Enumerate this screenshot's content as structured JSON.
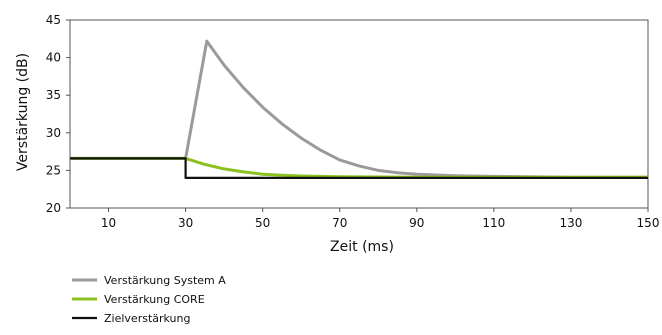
{
  "chart_data": {
    "type": "line",
    "xlabel": "Zeit (ms)",
    "ylabel": "Verstärkung (dB)",
    "xlim": [
      0,
      150
    ],
    "ylim": [
      20,
      45
    ],
    "x_ticks": [
      10,
      30,
      50,
      70,
      90,
      110,
      130,
      150
    ],
    "y_ticks": [
      20,
      25,
      30,
      35,
      40,
      45
    ],
    "grid": false,
    "legend_position": "bottom-left",
    "series": [
      {
        "name": "Verstärkung System A",
        "color": "#9a9a9a",
        "points": [
          [
            0,
            26.6
          ],
          [
            30,
            26.6
          ],
          [
            35.5,
            42.2
          ],
          [
            40,
            39.0
          ],
          [
            45,
            36.0
          ],
          [
            50,
            33.4
          ],
          [
            55,
            31.2
          ],
          [
            60,
            29.3
          ],
          [
            65,
            27.7
          ],
          [
            70,
            26.4
          ],
          [
            75,
            25.6
          ],
          [
            80,
            25.0
          ],
          [
            85,
            24.7
          ],
          [
            90,
            24.5
          ],
          [
            100,
            24.3
          ],
          [
            110,
            24.2
          ],
          [
            130,
            24.1
          ],
          [
            150,
            24.1
          ]
        ]
      },
      {
        "name": "Verstärkung CORE",
        "color": "#8cc21f",
        "points": [
          [
            0,
            26.6
          ],
          [
            30,
            26.6
          ],
          [
            35,
            25.8
          ],
          [
            40,
            25.2
          ],
          [
            45,
            24.8
          ],
          [
            50,
            24.5
          ],
          [
            55,
            24.35
          ],
          [
            60,
            24.25
          ],
          [
            70,
            24.15
          ],
          [
            90,
            24.1
          ],
          [
            150,
            24.1
          ]
        ]
      },
      {
        "name": "Zielverstärkung",
        "color": "#111111",
        "points": [
          [
            0,
            26.6
          ],
          [
            30,
            26.6
          ],
          [
            30,
            24.0
          ],
          [
            150,
            24.0
          ]
        ]
      }
    ]
  }
}
